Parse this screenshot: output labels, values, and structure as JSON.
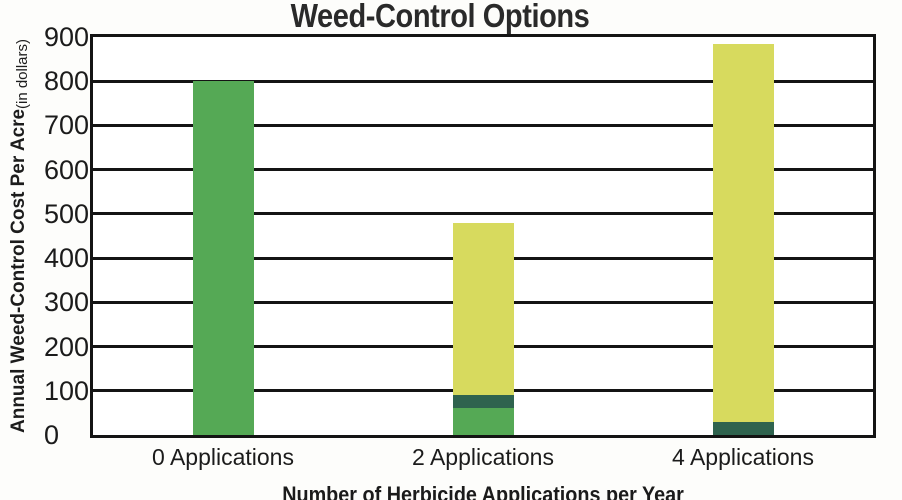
{
  "chart_data": {
    "type": "bar",
    "stacked": true,
    "title": "Weed-Control Options",
    "xlabel": "Number of Herbicide Applications per Year",
    "ylabel_main": "Annual Weed-Control Cost Per Acre",
    "ylabel_unit": "(in dollars)",
    "categories": [
      "0 Applications",
      "2 Applications",
      "4 Applications"
    ],
    "series": [
      {
        "name": "green-segment",
        "color": "#55a955",
        "values": [
          800,
          60,
          0
        ]
      },
      {
        "name": "dark-green-segment",
        "color": "#2f634e",
        "values": [
          0,
          30,
          30
        ]
      },
      {
        "name": "yellow-green-segment",
        "color": "#d7da5e",
        "values": [
          0,
          390,
          855
        ]
      }
    ],
    "totals": [
      800,
      480,
      885
    ],
    "ylim": [
      0,
      900
    ],
    "yticks": [
      0,
      100,
      200,
      300,
      400,
      500,
      600,
      700,
      800,
      900
    ],
    "grid": "horizontal",
    "legend": "none"
  },
  "colors": {
    "axis": "#141414",
    "text": "#1b1b1b",
    "title_text": "#2a2a2a",
    "background": "#fdfdfb",
    "plot_background": "#ffffff"
  }
}
